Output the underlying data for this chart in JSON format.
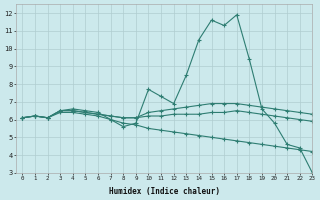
{
  "xlabel": "Humidex (Indice chaleur)",
  "ylabel": "",
  "background_color": "#cce9ec",
  "grid_color": "#b0cdd0",
  "line_color": "#2e7d72",
  "xlim": [
    -0.5,
    23
  ],
  "ylim": [
    3,
    12.5
  ],
  "xticks": [
    0,
    1,
    2,
    3,
    4,
    5,
    6,
    7,
    8,
    9,
    10,
    11,
    12,
    13,
    14,
    15,
    16,
    17,
    18,
    19,
    20,
    21,
    22,
    23
  ],
  "yticks": [
    3,
    4,
    5,
    6,
    7,
    8,
    9,
    10,
    11,
    12
  ],
  "series": [
    [
      6.1,
      6.2,
      6.1,
      6.5,
      6.6,
      6.5,
      6.4,
      6.0,
      5.6,
      5.8,
      7.7,
      7.3,
      6.9,
      8.5,
      10.5,
      11.6,
      11.3,
      11.9,
      9.4,
      6.6,
      5.8,
      4.6,
      4.4,
      3.0
    ],
    [
      6.1,
      6.2,
      6.1,
      6.5,
      6.5,
      6.4,
      6.3,
      6.2,
      6.1,
      6.1,
      6.4,
      6.5,
      6.6,
      6.7,
      6.8,
      6.9,
      6.9,
      6.9,
      6.8,
      6.7,
      6.6,
      6.5,
      6.4,
      6.3
    ],
    [
      6.1,
      6.2,
      6.1,
      6.5,
      6.5,
      6.4,
      6.3,
      6.2,
      6.1,
      6.1,
      6.2,
      6.2,
      6.3,
      6.3,
      6.3,
      6.4,
      6.4,
      6.5,
      6.4,
      6.3,
      6.2,
      6.1,
      6.0,
      5.9
    ],
    [
      6.1,
      6.2,
      6.1,
      6.4,
      6.4,
      6.3,
      6.2,
      6.0,
      5.8,
      5.7,
      5.5,
      5.4,
      5.3,
      5.2,
      5.1,
      5.0,
      4.9,
      4.8,
      4.7,
      4.6,
      4.5,
      4.4,
      4.3,
      4.2
    ]
  ]
}
